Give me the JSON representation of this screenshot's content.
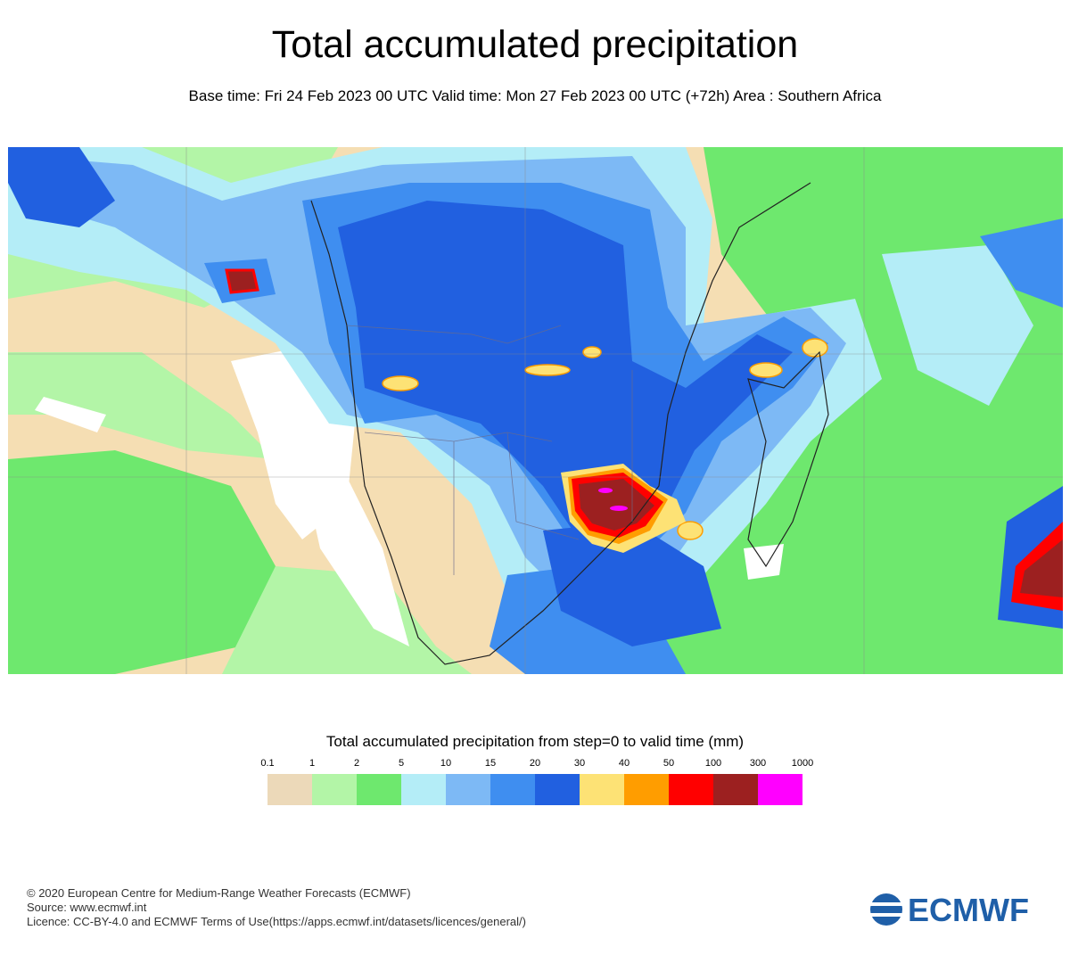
{
  "title": "Total accumulated precipitation",
  "subtitle": "Base time: Fri 24 Feb 2023 00 UTC Valid time: Mon 27 Feb 2023 00 UTC (+72h) Area : Southern Africa",
  "legend": {
    "title": "Total accumulated precipitation from step=0 to valid time (mm)",
    "ticks": [
      "0.1",
      "1",
      "2",
      "5",
      "10",
      "15",
      "20",
      "30",
      "40",
      "50",
      "100",
      "300",
      "1000"
    ],
    "colors": [
      "#ecd9b9",
      "#b3f5a7",
      "#6ee86e",
      "#b4edf7",
      "#7db9f5",
      "#3f8ef0",
      "#2160e0",
      "#fde275",
      "#ff9d00",
      "#ff0000",
      "#9c2020",
      "#ff00ff"
    ]
  },
  "map_colors": {
    "dry": "#f5deb3",
    "light_green": "#b3f5a7",
    "green": "#6ee86e",
    "light_blue": "#b4edf7",
    "mid_blue": "#7db9f5",
    "blue": "#3f8ef0",
    "dark_blue": "#2160e0",
    "yellow": "#fde275",
    "orange": "#ff9d00",
    "red": "#ff0000",
    "maroon": "#9c2020",
    "magenta": "#ff00ff",
    "no_rain": "#ffffff",
    "border": "#222222"
  },
  "footer": {
    "line1": "© 2020 European Centre for Medium-Range Weather Forecasts (ECMWF)",
    "line2": "Source: www.ecmwf.int",
    "line3": "Licence: CC-BY-4.0 and ECMWF Terms of Use(https://apps.ecmwf.int/datasets/licences/general/)"
  },
  "logo": {
    "text": "ECMWF",
    "color": "#1f5fa8"
  }
}
